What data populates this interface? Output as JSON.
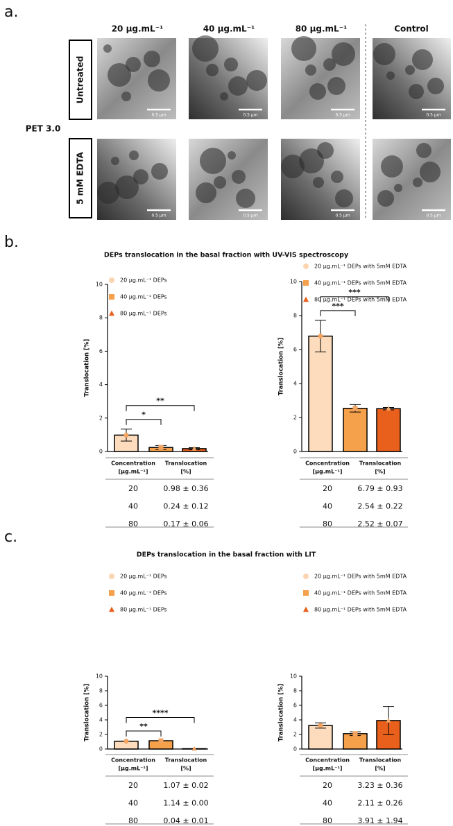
{
  "panel_a": {
    "label": "a.",
    "columns": [
      "20 µg.mL⁻¹",
      "40 µg.mL⁻¹",
      "80 µg.mL⁻¹",
      "Control"
    ],
    "row_group": "PET 3.0",
    "rows": [
      "Untreated",
      "5 mM EDTA"
    ],
    "scale_bar": "0.5 µm"
  },
  "panel_b": {
    "label": "b.",
    "title": "DEPs translocation in the basal fraction with UV-VIS spectroscopy"
  },
  "panel_c": {
    "label": "c.",
    "title": "DEPs translocation in the basal fraction with LIT"
  },
  "chart_data": [
    {
      "type": "bar",
      "ylabel": "Translocation [%]",
      "ylim": [
        0,
        10
      ],
      "yticks": [
        0,
        2,
        4,
        6,
        8,
        10
      ],
      "series": [
        {
          "name": "20 µg.mL⁻¹ DEPs",
          "color": "#fcdcbc",
          "marker": "circle",
          "values": [
            0.98
          ],
          "errors": [
            0.36
          ]
        },
        {
          "name": "40 µg.mL⁻¹ DEPs",
          "color": "#f5a04a",
          "marker": "square",
          "values": [
            0.24
          ],
          "errors": [
            0.12
          ]
        },
        {
          "name": "80 µg.mL⁻¹ DEPs",
          "color": "#e8601c",
          "marker": "triangle",
          "values": [
            0.17
          ],
          "errors": [
            0.06
          ]
        }
      ],
      "significance": [
        {
          "from": 0,
          "to": 1,
          "label": "*"
        },
        {
          "from": 0,
          "to": 2,
          "label": "**"
        }
      ],
      "table": {
        "columns": [
          [
            "Concentration",
            "[µg.mL⁻¹]"
          ],
          [
            "Translocation",
            "[%]"
          ]
        ],
        "rows": [
          [
            "20",
            "0.98 ± 0.36"
          ],
          [
            "40",
            "0.24 ± 0.12"
          ],
          [
            "80",
            "0.17 ± 0.06"
          ]
        ]
      }
    },
    {
      "type": "bar",
      "ylabel": "Translocation [%]",
      "ylim": [
        0,
        10
      ],
      "yticks": [
        0,
        2,
        4,
        6,
        8,
        10
      ],
      "series": [
        {
          "name": "20 µg.mL⁻¹ DEPs with 5mM EDTA",
          "color": "#fcdcbc",
          "marker": "circle",
          "values": [
            6.79
          ],
          "errors": [
            0.93
          ]
        },
        {
          "name": "40 µg.mL⁻¹ DEPs with 5mM EDTA",
          "color": "#f5a04a",
          "marker": "square",
          "values": [
            2.54
          ],
          "errors": [
            0.22
          ]
        },
        {
          "name": "80 µg.mL⁻¹ DEPs with 5mM EDTA",
          "color": "#e8601c",
          "marker": "triangle",
          "values": [
            2.52
          ],
          "errors": [
            0.07
          ]
        }
      ],
      "significance": [
        {
          "from": 0,
          "to": 1,
          "label": "***"
        },
        {
          "from": 0,
          "to": 2,
          "label": "***"
        }
      ],
      "table": {
        "columns": [
          [
            "Concentration",
            "[µg.mL⁻¹]"
          ],
          [
            "Translocation",
            "[%]"
          ]
        ],
        "rows": [
          [
            "20",
            "6.79 ± 0.93"
          ],
          [
            "40",
            "2.54 ± 0.22"
          ],
          [
            "80",
            "2.52 ± 0.07"
          ]
        ]
      }
    },
    {
      "type": "bar",
      "ylabel": "Translocation [%]",
      "ylim": [
        0,
        10
      ],
      "yticks": [
        0,
        2,
        4,
        6,
        8,
        10
      ],
      "series": [
        {
          "name": "20 µg.mL⁻¹ DEPs",
          "color": "#fcdcbc",
          "marker": "circle",
          "values": [
            1.07
          ],
          "errors": [
            0.02
          ]
        },
        {
          "name": "40 µg.mL⁻¹ DEPs",
          "color": "#f5a04a",
          "marker": "square",
          "values": [
            1.14
          ],
          "errors": [
            0.0
          ]
        },
        {
          "name": "80 µg.mL⁻¹ DEPs",
          "color": "#e8601c",
          "marker": "triangle",
          "values": [
            0.04
          ],
          "errors": [
            0.01
          ]
        }
      ],
      "significance": [
        {
          "from": 0,
          "to": 1,
          "label": "**"
        },
        {
          "from": 0,
          "to": 2,
          "label": "****"
        }
      ],
      "table": {
        "columns": [
          [
            "Concentration",
            "[µg.mL⁻¹]"
          ],
          [
            "Translocation",
            "[%]"
          ]
        ],
        "rows": [
          [
            "20",
            "1.07 ± 0.02"
          ],
          [
            "40",
            "1.14 ± 0.00"
          ],
          [
            "80",
            "0.04 ± 0.01"
          ]
        ]
      }
    },
    {
      "type": "bar",
      "ylabel": "Translocation [%]",
      "ylim": [
        0,
        10
      ],
      "yticks": [
        0,
        2,
        4,
        6,
        8,
        10
      ],
      "series": [
        {
          "name": "20 µg.mL⁻¹ DEPs with 5mM EDTA",
          "color": "#fcdcbc",
          "marker": "circle",
          "values": [
            3.23
          ],
          "errors": [
            0.36
          ]
        },
        {
          "name": "40 µg.mL⁻¹ DEPs with 5mM EDTA",
          "color": "#f5a04a",
          "marker": "square",
          "values": [
            2.11
          ],
          "errors": [
            0.26
          ]
        },
        {
          "name": "80 µg.mL⁻¹ DEPs with 5mM EDTA",
          "color": "#e8601c",
          "marker": "triangle",
          "values": [
            3.91
          ],
          "errors": [
            1.94
          ]
        }
      ],
      "significance": [],
      "table": {
        "columns": [
          [
            "Concentration",
            "[µg.mL⁻¹]"
          ],
          [
            "Translocation",
            "[%]"
          ]
        ],
        "rows": [
          [
            "20",
            "3.23 ± 0.36"
          ],
          [
            "40",
            "2.11 ± 0.26"
          ],
          [
            "80",
            "3.91 ± 1.94"
          ]
        ]
      }
    }
  ]
}
